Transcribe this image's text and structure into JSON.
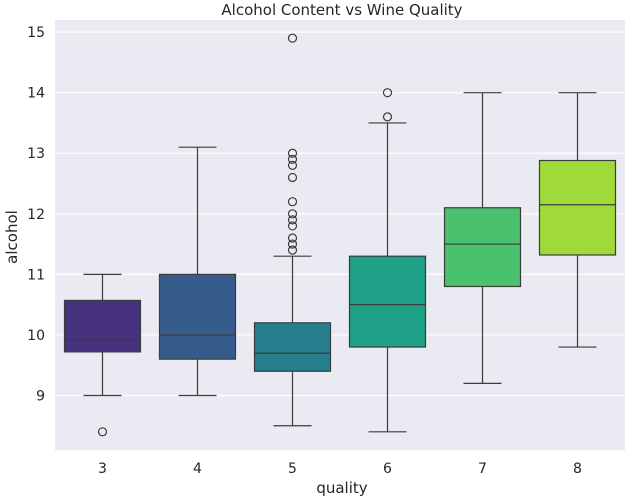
{
  "chart_data": {
    "type": "box",
    "title": "Alcohol Content vs Wine Quality",
    "xlabel": "quality",
    "ylabel": "alcohol",
    "ylim": [
      8.1,
      15.2
    ],
    "yticks": [
      9,
      10,
      11,
      12,
      13,
      14,
      15
    ],
    "grid": true,
    "categories": [
      "3",
      "4",
      "5",
      "6",
      "7",
      "8"
    ],
    "boxes": [
      {
        "category": "3",
        "whisker_low": 9.0,
        "q1": 9.72,
        "median": 9.92,
        "q3": 10.57,
        "whisker_high": 11.0,
        "outliers": [
          8.4
        ],
        "color": "#46327e"
      },
      {
        "category": "4",
        "whisker_low": 9.0,
        "q1": 9.6,
        "median": 10.0,
        "q3": 11.0,
        "whisker_high": 13.1,
        "outliers": [],
        "color": "#365c8d"
      },
      {
        "category": "5",
        "whisker_low": 8.5,
        "q1": 9.4,
        "median": 9.7,
        "q3": 10.2,
        "whisker_high": 11.3,
        "outliers": [
          11.4,
          11.5,
          11.6,
          11.8,
          11.9,
          12.0,
          12.2,
          12.6,
          12.8,
          12.9,
          13.0,
          14.9
        ],
        "color": "#277f8e"
      },
      {
        "category": "6",
        "whisker_low": 8.4,
        "q1": 9.8,
        "median": 10.5,
        "q3": 11.3,
        "whisker_high": 13.5,
        "outliers": [
          13.6,
          14.0
        ],
        "color": "#1fa187"
      },
      {
        "category": "7",
        "whisker_low": 9.2,
        "q1": 10.8,
        "median": 11.5,
        "q3": 12.1,
        "whisker_high": 14.0,
        "outliers": [],
        "color": "#4ac16d"
      },
      {
        "category": "8",
        "whisker_low": 9.8,
        "q1": 11.32,
        "median": 12.15,
        "q3": 12.88,
        "whisker_high": 14.0,
        "outliers": [],
        "color": "#a0da39"
      }
    ]
  }
}
